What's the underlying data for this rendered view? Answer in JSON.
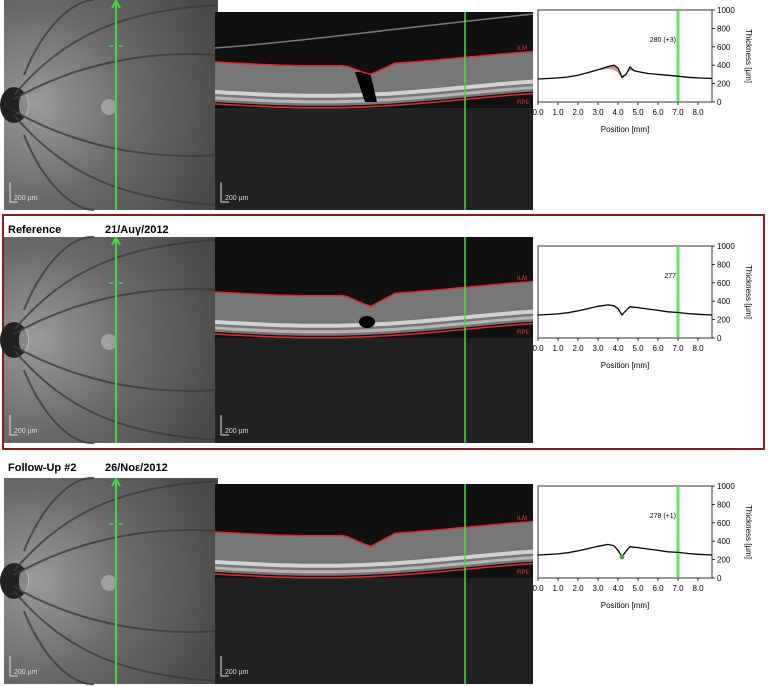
{
  "rows": [
    {
      "title": "",
      "date": "",
      "annotation": "280 (+3)",
      "highlight": false
    },
    {
      "title": "Reference",
      "date": "21/Auγ/2012",
      "annotation": "277",
      "highlight": true
    },
    {
      "title": "Follow-Up #2",
      "date": "26/Noε/2012",
      "annotation": "278 (+1)",
      "highlight": false
    }
  ],
  "scale_bar_label": "200 µm",
  "layer_tags": {
    "top": "ILM",
    "bottom": "RPE"
  },
  "colors": {
    "scan_line": "#3fdc3f",
    "segmentation": "#e02a2a",
    "frame_highlight": "#8b1c1c",
    "difference_fill": "#c0504d"
  },
  "chart_data": [
    {
      "type": "line",
      "xlabel": "Position [mm]",
      "ylabel": "Thickness [µm]",
      "x_ticks": [
        "0.0",
        "1.0",
        "2.0",
        "3.0",
        "4.0",
        "5.0",
        "6.0",
        "7.0",
        "8.0"
      ],
      "y_ticks": [
        "0",
        "200",
        "400",
        "600",
        "800",
        "1000"
      ],
      "xlim": [
        0,
        8.7
      ],
      "ylim": [
        0,
        1000
      ],
      "marker_x": 7.0,
      "series": [
        {
          "x": [
            0,
            0.5,
            1.0,
            1.5,
            2.0,
            2.5,
            3.0,
            3.5,
            3.8,
            4.0,
            4.2,
            4.4,
            4.6,
            4.8,
            5.0,
            5.5,
            6.0,
            6.5,
            7.0,
            7.5,
            8.0,
            8.7
          ],
          "y": [
            250,
            255,
            262,
            272,
            290,
            320,
            350,
            385,
            400,
            370,
            270,
            300,
            380,
            340,
            330,
            310,
            300,
            290,
            280,
            268,
            262,
            255
          ]
        }
      ]
    },
    {
      "type": "line",
      "xlabel": "Position [mm]",
      "ylabel": "Thickness [µm]",
      "x_ticks": [
        "0.0",
        "1.0",
        "2.0",
        "3.0",
        "4.0",
        "5.0",
        "6.0",
        "7.0",
        "8.0"
      ],
      "y_ticks": [
        "0",
        "200",
        "400",
        "600",
        "800",
        "1000"
      ],
      "xlim": [
        0,
        8.7
      ],
      "ylim": [
        0,
        1000
      ],
      "marker_x": 7.0,
      "series": [
        {
          "x": [
            0,
            0.5,
            1.0,
            1.5,
            2.0,
            2.5,
            3.0,
            3.5,
            3.8,
            4.0,
            4.2,
            4.4,
            4.6,
            4.8,
            5.0,
            5.5,
            6.0,
            6.5,
            7.0,
            7.5,
            8.0,
            8.7
          ],
          "y": [
            250,
            255,
            262,
            275,
            295,
            320,
            345,
            360,
            350,
            320,
            250,
            300,
            340,
            335,
            330,
            315,
            300,
            285,
            277,
            265,
            258,
            250
          ]
        }
      ]
    },
    {
      "type": "line",
      "xlabel": "Position [mm]",
      "ylabel": "Thickness [µm]",
      "x_ticks": [
        "0.0",
        "1.0",
        "2.0",
        "3.0",
        "4.0",
        "5.0",
        "6.0",
        "7.0",
        "8.0"
      ],
      "y_ticks": [
        "0",
        "200",
        "400",
        "600",
        "800",
        "1000"
      ],
      "xlim": [
        0,
        8.7
      ],
      "ylim": [
        0,
        1000
      ],
      "marker_x": 7.0,
      "series": [
        {
          "x": [
            0,
            0.5,
            1.0,
            1.5,
            2.0,
            2.5,
            3.0,
            3.5,
            3.8,
            4.0,
            4.2,
            4.4,
            4.6,
            4.8,
            5.0,
            5.5,
            6.0,
            6.5,
            7.0,
            7.5,
            8.0,
            8.7
          ],
          "y": [
            250,
            255,
            262,
            275,
            295,
            320,
            345,
            365,
            350,
            300,
            230,
            290,
            340,
            335,
            330,
            315,
            300,
            285,
            278,
            266,
            258,
            250
          ]
        }
      ]
    }
  ]
}
